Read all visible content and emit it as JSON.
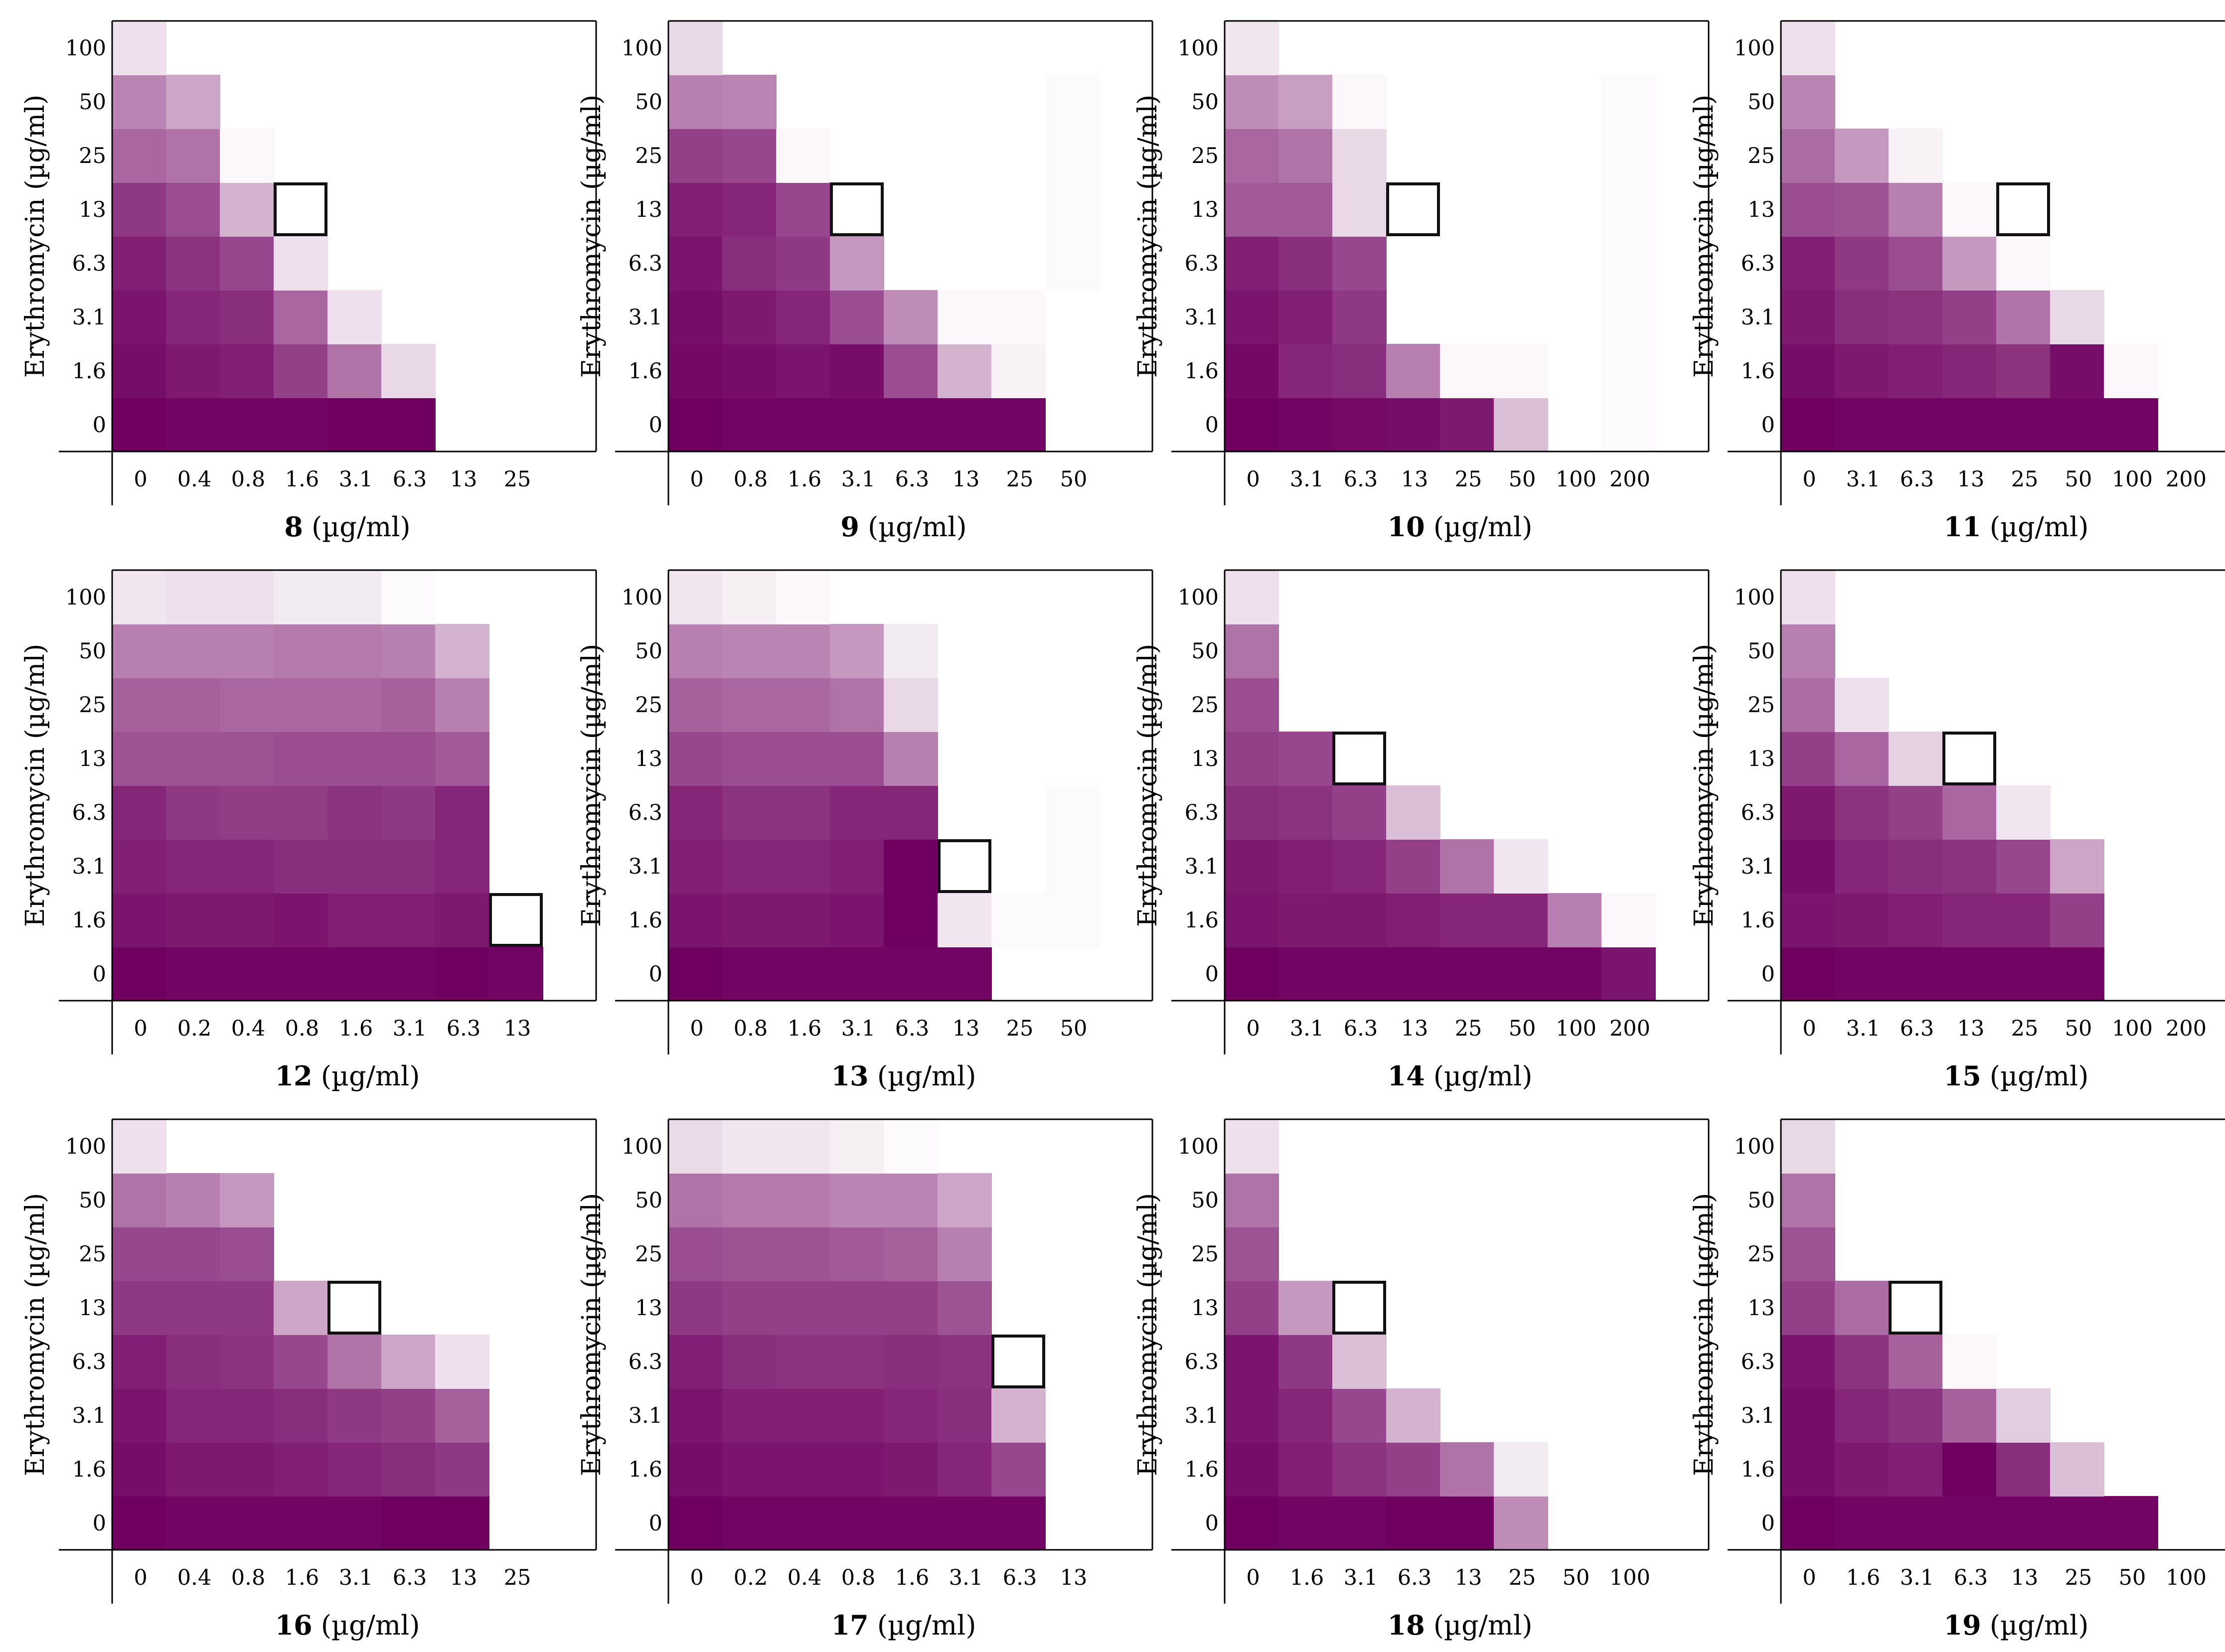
{
  "color_scale": {
    "low": "#ffffff",
    "high": "#6f0060",
    "mic_box_stroke": "#111111"
  },
  "shared_y_categories": [
    "0",
    "1.6",
    "3.1",
    "6.3",
    "13",
    "25",
    "50",
    "100"
  ],
  "chart_data": [
    {
      "type": "heatmap",
      "compound": "8",
      "unit": "(µg/ml)",
      "ylabel": "Erythromycin (µg/ml)",
      "x_categories": [
        "0",
        "0.4",
        "0.8",
        "1.6",
        "3.1",
        "6.3",
        "13",
        "25"
      ],
      "y_categories": [
        "0",
        "1.6",
        "3.1",
        "6.3",
        "13",
        "25",
        "50",
        "100"
      ],
      "values": [
        [
          1.0,
          0.98,
          0.98,
          0.98,
          1.0,
          1.0,
          0,
          0
        ],
        [
          0.95,
          0.9,
          0.88,
          0.75,
          0.55,
          0.15,
          0,
          0
        ],
        [
          0.92,
          0.85,
          0.82,
          0.6,
          0.12,
          0,
          0,
          0
        ],
        [
          0.88,
          0.8,
          0.72,
          0.12,
          0,
          0,
          0,
          0
        ],
        [
          0.78,
          0.7,
          0.3,
          0,
          0,
          0,
          0,
          0
        ],
        [
          0.6,
          0.55,
          0.03,
          0,
          0,
          0,
          0,
          0
        ],
        [
          0.48,
          0.35,
          0,
          0,
          0,
          0,
          0,
          0
        ],
        [
          0.12,
          0,
          0,
          0,
          0,
          0,
          0,
          0
        ]
      ],
      "mic": [
        3,
        4
      ]
    },
    {
      "type": "heatmap",
      "compound": "9",
      "unit": "(µg/ml)",
      "ylabel": "Erythromycin (µg/ml)",
      "x_categories": [
        "0",
        "0.8",
        "1.6",
        "3.1",
        "6.3",
        "13",
        "25",
        "50"
      ],
      "y_categories": [
        "0",
        "1.6",
        "3.1",
        "6.3",
        "13",
        "25",
        "50",
        "100"
      ],
      "values": [
        [
          1.0,
          0.98,
          0.98,
          0.98,
          0.98,
          0.98,
          0.98,
          0
        ],
        [
          0.97,
          0.95,
          0.92,
          0.95,
          0.7,
          0.3,
          0.05,
          0
        ],
        [
          0.95,
          0.9,
          0.85,
          0.7,
          0.45,
          0.03,
          0.03,
          0
        ],
        [
          0.92,
          0.82,
          0.78,
          0.4,
          0,
          0,
          0,
          0.02
        ],
        [
          0.88,
          0.85,
          0.72,
          0,
          0,
          0,
          0,
          0.02
        ],
        [
          0.75,
          0.72,
          0.03,
          0,
          0,
          0,
          0,
          0.02
        ],
        [
          0.5,
          0.48,
          0,
          0,
          0,
          0,
          0,
          0.02
        ],
        [
          0.15,
          0,
          0,
          0,
          0,
          0,
          0,
          0
        ]
      ],
      "mic": [
        3,
        4
      ]
    },
    {
      "type": "heatmap",
      "compound": "10",
      "unit": "(µg/ml)",
      "ylabel": "Erythromycin (µg/ml)",
      "x_categories": [
        "0",
        "3.1",
        "6.3",
        "13",
        "25",
        "50",
        "100",
        "200"
      ],
      "y_categories": [
        "0",
        "1.6",
        "3.1",
        "6.3",
        "13",
        "25",
        "50",
        "100"
      ],
      "values": [
        [
          1.0,
          0.98,
          0.96,
          0.95,
          0.9,
          0.25,
          0,
          0.02
        ],
        [
          0.97,
          0.85,
          0.82,
          0.5,
          0.03,
          0.03,
          0,
          0.02
        ],
        [
          0.92,
          0.88,
          0.78,
          0,
          0,
          0,
          0,
          0.02
        ],
        [
          0.88,
          0.82,
          0.72,
          0,
          0,
          0,
          0,
          0.02
        ],
        [
          0.65,
          0.65,
          0.15,
          0,
          0,
          0,
          0,
          0.02
        ],
        [
          0.6,
          0.55,
          0.15,
          0,
          0,
          0,
          0,
          0.02
        ],
        [
          0.45,
          0.38,
          0.03,
          0,
          0,
          0,
          0,
          0.02
        ],
        [
          0.1,
          0,
          0,
          0,
          0,
          0,
          0,
          0
        ]
      ],
      "mic": [
        3,
        4
      ]
    },
    {
      "type": "heatmap",
      "compound": "11",
      "unit": "(µg/ml)",
      "ylabel": "Erythromycin (µg/ml)",
      "x_categories": [
        "0",
        "3.1",
        "6.3",
        "13",
        "25",
        "50",
        "100",
        "200"
      ],
      "y_categories": [
        "0",
        "1.6",
        "3.1",
        "6.3",
        "13",
        "25",
        "50",
        "100"
      ],
      "values": [
        [
          1.0,
          0.98,
          0.98,
          0.98,
          0.98,
          0.98,
          0.98,
          0
        ],
        [
          0.95,
          0.9,
          0.88,
          0.85,
          0.8,
          0.95,
          0.03,
          0
        ],
        [
          0.9,
          0.82,
          0.8,
          0.75,
          0.55,
          0.15,
          0,
          0
        ],
        [
          0.88,
          0.78,
          0.7,
          0.4,
          0.03,
          0,
          0,
          0
        ],
        [
          0.7,
          0.68,
          0.5,
          0.03,
          0,
          0,
          0,
          0
        ],
        [
          0.58,
          0.4,
          0.05,
          0,
          0,
          0,
          0,
          0
        ],
        [
          0.48,
          0,
          0,
          0,
          0,
          0,
          0,
          0
        ],
        [
          0.12,
          0,
          0,
          0,
          0,
          0,
          0,
          0
        ]
      ],
      "mic": [
        4,
        4
      ]
    },
    {
      "type": "heatmap",
      "compound": "12",
      "unit": "(µg/ml)",
      "ylabel": "Erythromycin (µg/ml)",
      "x_categories": [
        "0",
        "0.2",
        "0.4",
        "0.8",
        "1.6",
        "3.1",
        "6.3",
        "13"
      ],
      "y_categories": [
        "0",
        "1.6",
        "3.1",
        "6.3",
        "13",
        "25",
        "50",
        "100"
      ],
      "values": [
        [
          1.0,
          0.98,
          0.98,
          0.98,
          0.98,
          0.98,
          1.0,
          0.98
        ],
        [
          0.92,
          0.9,
          0.9,
          0.92,
          0.88,
          0.88,
          0.9,
          0
        ],
        [
          0.88,
          0.85,
          0.85,
          0.82,
          0.82,
          0.82,
          0.85,
          0
        ],
        [
          0.85,
          0.78,
          0.76,
          0.76,
          0.8,
          0.78,
          0.85,
          0
        ],
        [
          0.68,
          0.68,
          0.68,
          0.7,
          0.7,
          0.7,
          0.65,
          0
        ],
        [
          0.62,
          0.62,
          0.6,
          0.6,
          0.6,
          0.62,
          0.5,
          0
        ],
        [
          0.5,
          0.5,
          0.5,
          0.52,
          0.52,
          0.5,
          0.3,
          0
        ],
        [
          0.1,
          0.12,
          0.12,
          0.08,
          0.08,
          0.02,
          0,
          0
        ]
      ],
      "mic": [
        7,
        1
      ]
    },
    {
      "type": "heatmap",
      "compound": "13",
      "unit": "(µg/ml)",
      "ylabel": "Erythromycin (µg/ml)",
      "x_categories": [
        "0",
        "0.8",
        "1.6",
        "3.1",
        "6.3",
        "13",
        "25",
        "50"
      ],
      "y_categories": [
        "0",
        "1.6",
        "3.1",
        "6.3",
        "13",
        "25",
        "50",
        "100"
      ],
      "values": [
        [
          1.0,
          0.98,
          0.98,
          0.98,
          0.98,
          0.98,
          0,
          0
        ],
        [
          0.92,
          0.9,
          0.9,
          0.92,
          1.0,
          0.1,
          0.02,
          0.02
        ],
        [
          0.88,
          0.85,
          0.85,
          0.88,
          1.0,
          0,
          0,
          0.02
        ],
        [
          0.85,
          0.8,
          0.8,
          0.85,
          0.85,
          0,
          0,
          0.02
        ],
        [
          0.72,
          0.7,
          0.7,
          0.7,
          0.5,
          0,
          0,
          0
        ],
        [
          0.62,
          0.6,
          0.6,
          0.55,
          0.15,
          0,
          0,
          0
        ],
        [
          0.5,
          0.48,
          0.48,
          0.4,
          0.08,
          0,
          0,
          0
        ],
        [
          0.1,
          0.06,
          0.03,
          0,
          0,
          0,
          0,
          0
        ]
      ],
      "mic": [
        5,
        2
      ]
    },
    {
      "type": "heatmap",
      "compound": "14",
      "unit": "(µg/ml)",
      "ylabel": "Erythromycin (µg/ml)",
      "x_categories": [
        "0",
        "3.1",
        "6.3",
        "13",
        "25",
        "50",
        "100",
        "200"
      ],
      "y_categories": [
        "0",
        "1.6",
        "3.1",
        "6.3",
        "13",
        "25",
        "50",
        "100"
      ],
      "values": [
        [
          1.0,
          0.98,
          0.98,
          0.98,
          0.98,
          0.98,
          0.98,
          0.92
        ],
        [
          0.92,
          0.9,
          0.9,
          0.88,
          0.85,
          0.85,
          0.5,
          0.03
        ],
        [
          0.9,
          0.88,
          0.85,
          0.75,
          0.55,
          0.1,
          0,
          0
        ],
        [
          0.82,
          0.8,
          0.75,
          0.25,
          0,
          0,
          0,
          0
        ],
        [
          0.75,
          0.72,
          0,
          0,
          0,
          0,
          0,
          0
        ],
        [
          0.7,
          0,
          0,
          0,
          0,
          0,
          0,
          0
        ],
        [
          0.55,
          0,
          0,
          0,
          0,
          0,
          0,
          0
        ],
        [
          0.12,
          0,
          0,
          0,
          0,
          0,
          0,
          0
        ]
      ],
      "mic": [
        2,
        4
      ]
    },
    {
      "type": "heatmap",
      "compound": "15",
      "unit": "(µg/ml)",
      "ylabel": "Erythromycin (µg/ml)",
      "x_categories": [
        "0",
        "3.1",
        "6.3",
        "13",
        "25",
        "50",
        "100",
        "200"
      ],
      "y_categories": [
        "0",
        "1.6",
        "3.1",
        "6.3",
        "13",
        "25",
        "50",
        "100"
      ],
      "values": [
        [
          1.0,
          0.98,
          0.98,
          0.98,
          0.98,
          0.98,
          0,
          0
        ],
        [
          0.92,
          0.9,
          0.88,
          0.85,
          0.85,
          0.75,
          0,
          0
        ],
        [
          0.95,
          0.85,
          0.82,
          0.8,
          0.72,
          0.35,
          0,
          0
        ],
        [
          0.9,
          0.8,
          0.75,
          0.6,
          0.1,
          0,
          0,
          0
        ],
        [
          0.75,
          0.6,
          0.18,
          0,
          0,
          0,
          0,
          0
        ],
        [
          0.58,
          0.12,
          0,
          0,
          0,
          0,
          0,
          0
        ],
        [
          0.5,
          0,
          0,
          0,
          0,
          0,
          0,
          0
        ],
        [
          0.12,
          0,
          0,
          0,
          0,
          0,
          0,
          0
        ]
      ],
      "mic": [
        3,
        4
      ]
    },
    {
      "type": "heatmap",
      "compound": "16",
      "unit": "(µg/ml)",
      "ylabel": "Erythromycin (µg/ml)",
      "x_categories": [
        "0",
        "0.4",
        "0.8",
        "1.6",
        "3.1",
        "6.3",
        "13",
        "25"
      ],
      "y_categories": [
        "0",
        "1.6",
        "3.1",
        "6.3",
        "13",
        "25",
        "50",
        "100"
      ],
      "values": [
        [
          1.0,
          0.98,
          0.98,
          0.98,
          0.98,
          1.0,
          1.0,
          0
        ],
        [
          0.95,
          0.9,
          0.9,
          0.88,
          0.85,
          0.82,
          0.78,
          0
        ],
        [
          0.92,
          0.85,
          0.85,
          0.82,
          0.78,
          0.75,
          0.62,
          0
        ],
        [
          0.88,
          0.82,
          0.8,
          0.72,
          0.55,
          0.35,
          0.12,
          0
        ],
        [
          0.78,
          0.78,
          0.78,
          0.35,
          0,
          0,
          0,
          0
        ],
        [
          0.72,
          0.72,
          0.7,
          0,
          0,
          0,
          0,
          0
        ],
        [
          0.55,
          0.5,
          0.4,
          0,
          0,
          0,
          0,
          0
        ],
        [
          0.12,
          0,
          0,
          0,
          0,
          0,
          0,
          0
        ]
      ],
      "mic": [
        4,
        4
      ]
    },
    {
      "type": "heatmap",
      "compound": "17",
      "unit": "(µg/ml)",
      "ylabel": "Erythromycin (µg/ml)",
      "x_categories": [
        "0",
        "0.2",
        "0.4",
        "0.8",
        "1.6",
        "3.1",
        "6.3",
        "13"
      ],
      "y_categories": [
        "0",
        "1.6",
        "3.1",
        "6.3",
        "13",
        "25",
        "50",
        "100"
      ],
      "values": [
        [
          1.0,
          0.98,
          0.98,
          0.98,
          0.98,
          0.98,
          0.98,
          0
        ],
        [
          0.95,
          0.92,
          0.92,
          0.92,
          0.9,
          0.85,
          0.72,
          0
        ],
        [
          0.92,
          0.88,
          0.88,
          0.88,
          0.85,
          0.82,
          0.3,
          0
        ],
        [
          0.88,
          0.82,
          0.8,
          0.8,
          0.82,
          0.8,
          0,
          0
        ],
        [
          0.78,
          0.75,
          0.75,
          0.75,
          0.75,
          0.68,
          0,
          0
        ],
        [
          0.7,
          0.68,
          0.68,
          0.65,
          0.62,
          0.5,
          0,
          0
        ],
        [
          0.55,
          0.52,
          0.52,
          0.48,
          0.48,
          0.35,
          0,
          0
        ],
        [
          0.14,
          0.1,
          0.1,
          0.06,
          0.02,
          0,
          0,
          0
        ]
      ],
      "mic": [
        6,
        3
      ]
    },
    {
      "type": "heatmap",
      "compound": "18",
      "unit": "(µg/ml)",
      "ylabel": "Erythromycin (µg/ml)",
      "x_categories": [
        "0",
        "1.6",
        "3.1",
        "6.3",
        "13",
        "25",
        "50",
        "100"
      ],
      "y_categories": [
        "0",
        "1.6",
        "3.1",
        "6.3",
        "13",
        "25",
        "50",
        "100"
      ],
      "values": [
        [
          1.0,
          0.98,
          0.98,
          1.0,
          1.0,
          0.45,
          0,
          0
        ],
        [
          0.95,
          0.88,
          0.8,
          0.75,
          0.55,
          0.08,
          0,
          0
        ],
        [
          0.92,
          0.85,
          0.72,
          0.3,
          0,
          0,
          0,
          0
        ],
        [
          0.92,
          0.78,
          0.25,
          0,
          0,
          0,
          0,
          0
        ],
        [
          0.75,
          0.4,
          0,
          0,
          0,
          0,
          0,
          0
        ],
        [
          0.68,
          0,
          0,
          0,
          0,
          0,
          0,
          0
        ],
        [
          0.55,
          0,
          0,
          0,
          0,
          0,
          0,
          0
        ],
        [
          0.12,
          0,
          0,
          0,
          0,
          0,
          0,
          0
        ]
      ],
      "mic": [
        2,
        4
      ]
    },
    {
      "type": "heatmap",
      "compound": "19",
      "unit": "(µg/ml)",
      "ylabel": "Erythromycin (µg/ml)",
      "x_categories": [
        "0",
        "1.6",
        "3.1",
        "6.3",
        "13",
        "25",
        "50",
        "100"
      ],
      "y_categories": [
        "0",
        "1.6",
        "3.1",
        "6.3",
        "13",
        "25",
        "50",
        "100"
      ],
      "values": [
        [
          1.0,
          0.98,
          0.98,
          0.98,
          0.98,
          0.98,
          0.98,
          0
        ],
        [
          0.95,
          0.9,
          0.88,
          1.0,
          0.82,
          0.25,
          0,
          0
        ],
        [
          0.95,
          0.85,
          0.8,
          0.62,
          0.2,
          0,
          0,
          0
        ],
        [
          0.92,
          0.8,
          0.62,
          0.03,
          0,
          0,
          0,
          0
        ],
        [
          0.75,
          0.58,
          0,
          0,
          0,
          0,
          0,
          0
        ],
        [
          0.68,
          0,
          0,
          0,
          0,
          0,
          0,
          0
        ],
        [
          0.55,
          0,
          0,
          0,
          0,
          0,
          0,
          0
        ],
        [
          0.15,
          0,
          0,
          0,
          0,
          0,
          0,
          0
        ]
      ],
      "mic": [
        2,
        4
      ]
    }
  ]
}
